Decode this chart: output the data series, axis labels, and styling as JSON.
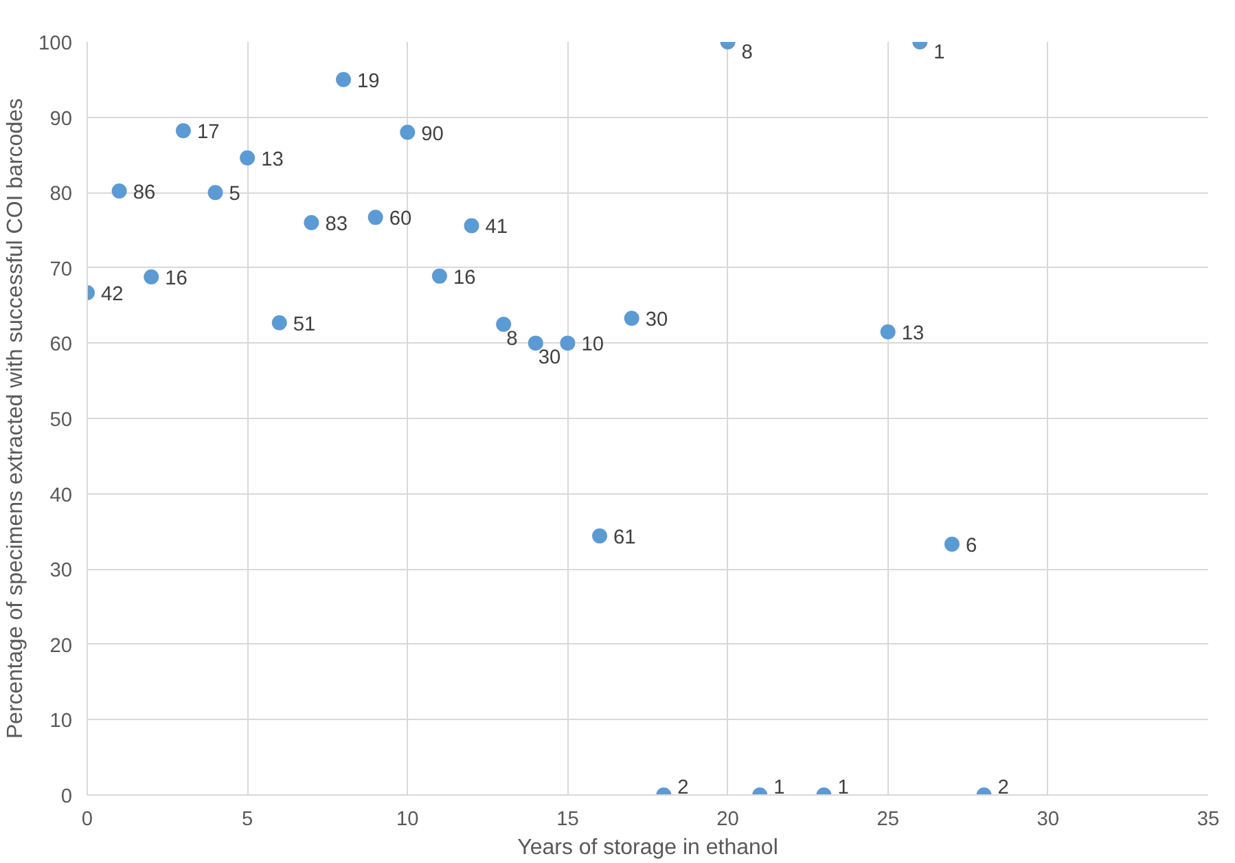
{
  "chart_data": {
    "type": "scatter",
    "xlabel": "Years of storage in ethanol",
    "ylabel": "Percentage of specimens extracted with successful COI barcodes",
    "x": [
      0,
      1,
      2,
      3,
      4,
      5,
      6,
      7,
      8,
      9,
      10,
      11,
      12,
      13,
      14,
      15,
      16,
      17,
      18,
      20,
      21,
      23,
      25,
      26,
      27,
      28
    ],
    "values": [
      66.7,
      80.2,
      68.8,
      88.2,
      80,
      84.6,
      62.7,
      76,
      95,
      76.7,
      88,
      68.9,
      75.6,
      62.5,
      60,
      60,
      34.4,
      63.3,
      0,
      100,
      0,
      0,
      61.5,
      100,
      33.3,
      0
    ],
    "annotations": [
      {
        "text": "42",
        "x": 0,
        "y": 66.7
      },
      {
        "text": "86",
        "x": 1,
        "y": 80.2
      },
      {
        "text": "16",
        "x": 2,
        "y": 68.8
      },
      {
        "text": "17",
        "x": 3,
        "y": 88.2
      },
      {
        "text": "5",
        "x": 4,
        "y": 80
      },
      {
        "text": "13",
        "x": 5,
        "y": 84.6
      },
      {
        "text": "51",
        "x": 6,
        "y": 62.7
      },
      {
        "text": "83",
        "x": 7,
        "y": 76
      },
      {
        "text": "19",
        "x": 8,
        "y": 95
      },
      {
        "text": "60",
        "x": 9,
        "y": 76.7
      },
      {
        "text": "90",
        "x": 10,
        "y": 88
      },
      {
        "text": "16",
        "x": 11,
        "y": 68.9
      },
      {
        "text": "41",
        "x": 12,
        "y": 75.6
      },
      {
        "text": "8",
        "x": 13,
        "y": 62.5
      },
      {
        "text": "30",
        "x": 14,
        "y": 60
      },
      {
        "text": "10",
        "x": 15,
        "y": 60
      },
      {
        "text": "61",
        "x": 16,
        "y": 34.4
      },
      {
        "text": "30",
        "x": 17,
        "y": 63.3
      },
      {
        "text": "2",
        "x": 18,
        "y": 0
      },
      {
        "text": "8",
        "x": 20,
        "y": 100
      },
      {
        "text": "1",
        "x": 21,
        "y": 0
      },
      {
        "text": "1",
        "x": 23,
        "y": 0
      },
      {
        "text": "13",
        "x": 25,
        "y": 61.5
      },
      {
        "text": "1",
        "x": 26,
        "y": 100
      },
      {
        "text": "6",
        "x": 27,
        "y": 33.3
      },
      {
        "text": "2",
        "x": 28,
        "y": 0
      }
    ],
    "color": "#5b9bd5",
    "marker": "circle",
    "xlim": [
      0,
      35
    ],
    "xticks": [
      0,
      5,
      10,
      15,
      20,
      25,
      30,
      35
    ],
    "ylim": [
      0,
      100
    ],
    "yticks": [
      0,
      10,
      20,
      30,
      40,
      50,
      60,
      70,
      80,
      90,
      100
    ],
    "grid": true
  }
}
